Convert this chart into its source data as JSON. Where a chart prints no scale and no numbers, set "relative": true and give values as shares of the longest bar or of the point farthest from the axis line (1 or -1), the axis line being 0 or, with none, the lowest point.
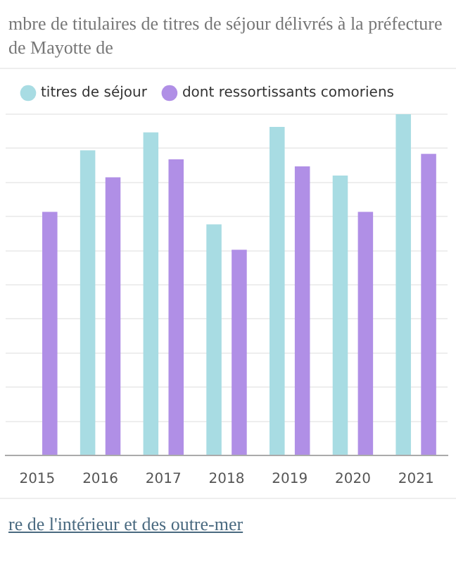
{
  "chart_data": {
    "type": "bar",
    "title": "mbre de titulaires de titres de séjour délivrés à la préfecture de Mayotte de",
    "categories": [
      "2015",
      "2016",
      "2017",
      "2018",
      "2019",
      "2020",
      "2021"
    ],
    "series": [
      {
        "name": "titres de séjour",
        "color": "#a8dce3",
        "values": [
          null,
          0.894,
          0.947,
          0.677,
          0.963,
          0.82,
          1
        ]
      },
      {
        "name": "dont ressortissants comoriens",
        "color": "#b08fe6",
        "values": [
          0.714,
          0.815,
          0.868,
          0.603,
          0.847,
          0.714,
          0.884
        ]
      }
    ],
    "relative": true,
    "grid": "y",
    "legend": "top left",
    "annotations": [
      "re de l'intérieur et des outre-mer"
    ]
  }
}
